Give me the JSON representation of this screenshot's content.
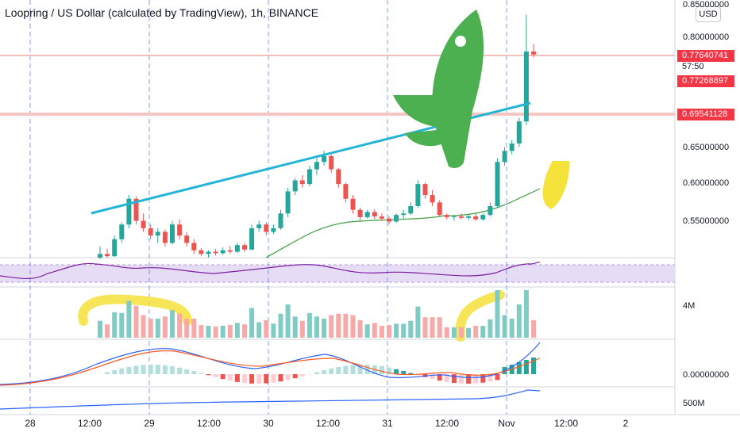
{
  "header": {
    "title": "Loopring / US Dollar (calculated by TradingView), 1h, BINANCE",
    "currency": "USD"
  },
  "price_axis": {
    "ticks": [
      "0.85000000",
      "0.80000000",
      "0.65000000",
      "0.60000000",
      "0.55000000"
    ],
    "last_price": "0.77640741",
    "countdown": "57:50",
    "level_1": "0.77268897",
    "level_2": "0.69541128"
  },
  "indicator_axis": {
    "volume_tick": "4M",
    "macd_tick": "0.00000000",
    "bottom_tick": "500M"
  },
  "time_axis": {
    "labels": [
      "28",
      "12:00",
      "29",
      "12:00",
      "30",
      "12:00",
      "31",
      "12:00",
      "Nov",
      "12:00",
      "2"
    ]
  },
  "colors": {
    "up": "#26a69a",
    "down": "#ef5350",
    "trendline": "#22b5d6",
    "rocket": "#4caf50",
    "highlight": "#f5e23a",
    "rsi_band": "#e6dcf5",
    "rsi_line": "#7b1fa2",
    "macd_line": "#2962ff",
    "signal_line": "#ff5722",
    "ma_line": "#43a047"
  },
  "chart_data": {
    "type": "candlestick",
    "interval": "1h",
    "y_range": [
      0.5,
      0.85
    ],
    "ohlc": [
      [
        0.5,
        0.515,
        0.498,
        0.505
      ],
      [
        0.505,
        0.512,
        0.5,
        0.502
      ],
      [
        0.502,
        0.53,
        0.501,
        0.525
      ],
      [
        0.525,
        0.548,
        0.52,
        0.545
      ],
      [
        0.545,
        0.585,
        0.54,
        0.58
      ],
      [
        0.58,
        0.583,
        0.545,
        0.55
      ],
      [
        0.55,
        0.56,
        0.535,
        0.54
      ],
      [
        0.54,
        0.545,
        0.525,
        0.53
      ],
      [
        0.53,
        0.54,
        0.52,
        0.535
      ],
      [
        0.535,
        0.538,
        0.515,
        0.52
      ],
      [
        0.52,
        0.55,
        0.518,
        0.545
      ],
      [
        0.545,
        0.552,
        0.525,
        0.53
      ],
      [
        0.53,
        0.535,
        0.515,
        0.52
      ],
      [
        0.52,
        0.525,
        0.505,
        0.51
      ],
      [
        0.51,
        0.513,
        0.502,
        0.505
      ],
      [
        0.505,
        0.51,
        0.5,
        0.508
      ],
      [
        0.508,
        0.512,
        0.503,
        0.506
      ],
      [
        0.506,
        0.514,
        0.504,
        0.51
      ],
      [
        0.51,
        0.516,
        0.505,
        0.508
      ],
      [
        0.508,
        0.52,
        0.506,
        0.517
      ],
      [
        0.517,
        0.52,
        0.508,
        0.511
      ],
      [
        0.511,
        0.545,
        0.51,
        0.54
      ],
      [
        0.54,
        0.55,
        0.535,
        0.545
      ],
      [
        0.545,
        0.548,
        0.53,
        0.535
      ],
      [
        0.535,
        0.545,
        0.532,
        0.54
      ],
      [
        0.54,
        0.565,
        0.538,
        0.56
      ],
      [
        0.56,
        0.595,
        0.555,
        0.59
      ],
      [
        0.59,
        0.608,
        0.585,
        0.605
      ],
      [
        0.605,
        0.612,
        0.595,
        0.6
      ],
      [
        0.6,
        0.625,
        0.597,
        0.62
      ],
      [
        0.62,
        0.635,
        0.612,
        0.63
      ],
      [
        0.63,
        0.645,
        0.625,
        0.638
      ],
      [
        0.638,
        0.64,
        0.615,
        0.62
      ],
      [
        0.62,
        0.622,
        0.595,
        0.6
      ],
      [
        0.6,
        0.602,
        0.575,
        0.58
      ],
      [
        0.58,
        0.585,
        0.56,
        0.565
      ],
      [
        0.565,
        0.568,
        0.55,
        0.555
      ],
      [
        0.555,
        0.565,
        0.553,
        0.562
      ],
      [
        0.562,
        0.566,
        0.552,
        0.556
      ],
      [
        0.556,
        0.56,
        0.55,
        0.553
      ],
      [
        0.553,
        0.556,
        0.545,
        0.549
      ],
      [
        0.549,
        0.56,
        0.547,
        0.558
      ],
      [
        0.558,
        0.565,
        0.552,
        0.56
      ],
      [
        0.56,
        0.575,
        0.558,
        0.57
      ],
      [
        0.57,
        0.605,
        0.568,
        0.6
      ],
      [
        0.6,
        0.602,
        0.58,
        0.585
      ],
      [
        0.585,
        0.592,
        0.57,
        0.575
      ],
      [
        0.575,
        0.578,
        0.556,
        0.558
      ],
      [
        0.558,
        0.56,
        0.552,
        0.555
      ],
      [
        0.555,
        0.558,
        0.55,
        0.556
      ],
      [
        0.556,
        0.56,
        0.552,
        0.554
      ],
      [
        0.554,
        0.558,
        0.551,
        0.556
      ],
      [
        0.556,
        0.56,
        0.55,
        0.552
      ],
      [
        0.552,
        0.56,
        0.55,
        0.558
      ],
      [
        0.558,
        0.575,
        0.556,
        0.57
      ],
      [
        0.57,
        0.635,
        0.568,
        0.63
      ],
      [
        0.63,
        0.65,
        0.625,
        0.645
      ],
      [
        0.645,
        0.66,
        0.64,
        0.655
      ],
      [
        0.655,
        0.69,
        0.65,
        0.685
      ],
      [
        0.685,
        0.83,
        0.68,
        0.78
      ],
      [
        0.78,
        0.79,
        0.772,
        0.776
      ]
    ],
    "trendline": [
      [
        0.56,
        0.555
      ],
      [
        0.718,
        0.73
      ]
    ],
    "volume_scale": "4M",
    "macd_zero": "0.00000000"
  }
}
